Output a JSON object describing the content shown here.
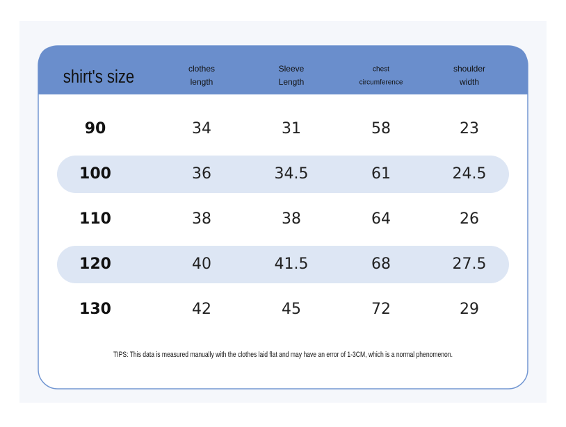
{
  "header": {
    "title": "shirt's size",
    "columns": [
      [
        "clothes",
        "length"
      ],
      [
        "Sleeve",
        "Length"
      ],
      [
        "chest",
        "circumference"
      ],
      [
        "shoulder",
        "width"
      ]
    ]
  },
  "table": {
    "rows": [
      [
        90,
        34,
        31,
        58,
        23
      ],
      [
        100,
        36,
        34.5,
        61,
        24.5
      ],
      [
        110,
        38,
        38,
        64,
        26
      ],
      [
        120,
        40,
        41.5,
        68,
        27.5
      ],
      [
        130,
        42,
        45,
        72,
        29
      ]
    ]
  },
  "tips": "TIPS: This data is measured manually with the clothes laid flat and may have an error of 1-3CM, which is a normal phenomenon."
}
